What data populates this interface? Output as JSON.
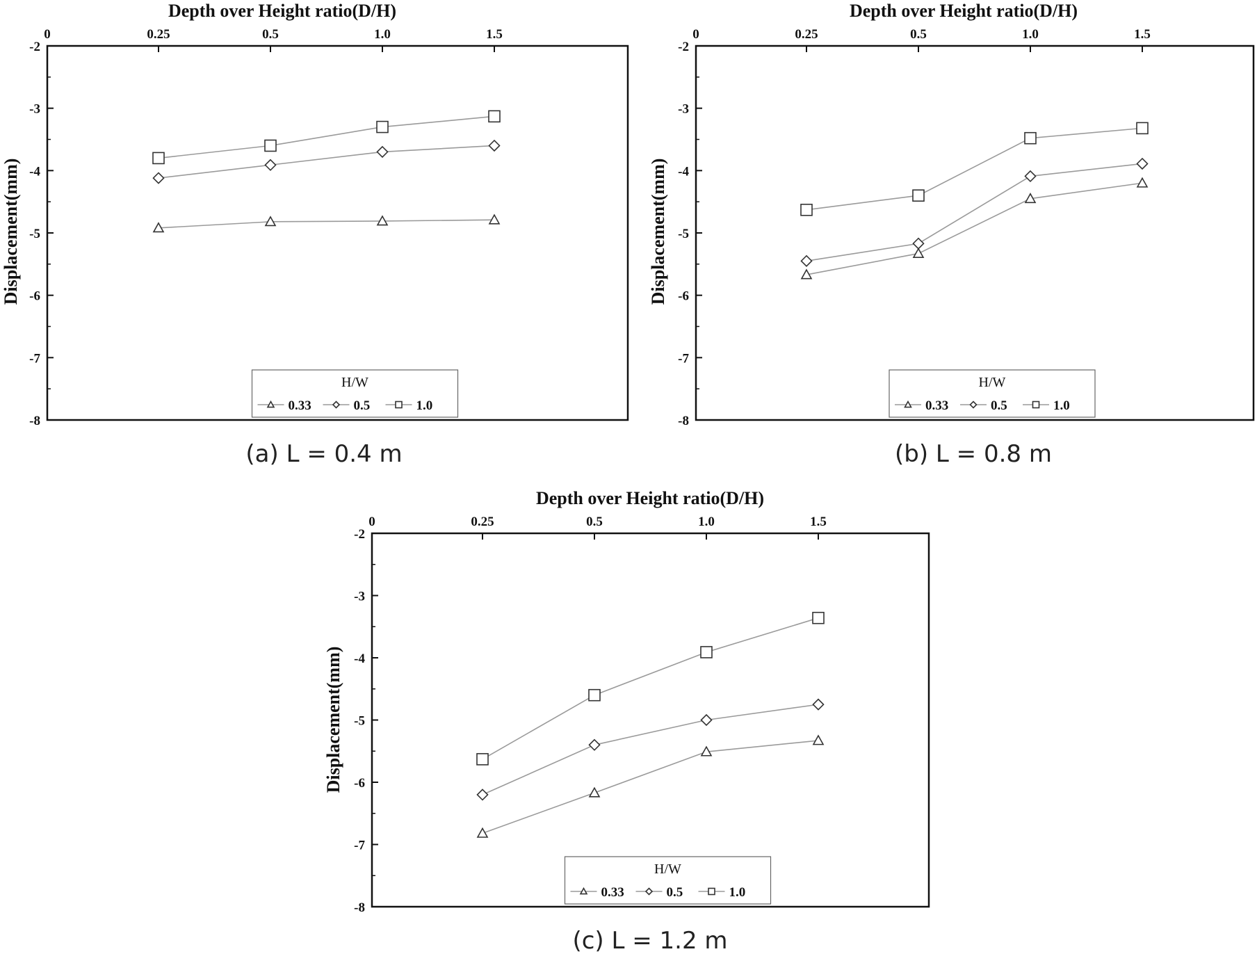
{
  "chart_data": [
    {
      "type": "line",
      "caption": "(a) L = 0.4 m",
      "xlabel": "Depth over Height ratio(D/H)",
      "ylabel": "Displacement(mm)",
      "x_tick_labels": [
        "0",
        "0.25",
        "0.5",
        "1.0",
        "1.5"
      ],
      "y_tick_labels": [
        "-2",
        "-3",
        "-4",
        "-5",
        "-6",
        "-7",
        "-8"
      ],
      "y_ticks": [
        -2,
        -3,
        -4,
        -5,
        -6,
        -7,
        -8
      ],
      "ylim": [
        -8,
        -2
      ],
      "x_axis_position": "top",
      "legend": {
        "title": "H/W",
        "position": "bottom-center"
      },
      "categories": [
        "0.25",
        "0.5",
        "1.0",
        "1.5"
      ],
      "series": [
        {
          "name": "0.33",
          "marker": "triangle",
          "values": [
            -4.92,
            -4.82,
            -4.81,
            -4.79
          ]
        },
        {
          "name": "0.5",
          "marker": "diamond",
          "values": [
            -4.12,
            -3.91,
            -3.7,
            -3.6
          ]
        },
        {
          "name": "1.0",
          "marker": "square",
          "values": [
            -3.8,
            -3.6,
            -3.3,
            -3.13
          ]
        }
      ]
    },
    {
      "type": "line",
      "caption": "(b) L = 0.8 m",
      "xlabel": "Depth over Height ratio(D/H)",
      "ylabel": "Displacement(mm)",
      "x_tick_labels": [
        "0",
        "0.25",
        "0.5",
        "1.0",
        "1.5"
      ],
      "y_tick_labels": [
        "-2",
        "-3",
        "-4",
        "-5",
        "-6",
        "-7",
        "-8"
      ],
      "y_ticks": [
        -2,
        -3,
        -4,
        -5,
        -6,
        -7,
        -8
      ],
      "ylim": [
        -8,
        -2
      ],
      "x_axis_position": "top",
      "legend": {
        "title": "H/W",
        "position": "bottom-center"
      },
      "categories": [
        "0.25",
        "0.5",
        "1.0",
        "1.5"
      ],
      "series": [
        {
          "name": "0.33",
          "marker": "triangle",
          "values": [
            -5.67,
            -5.33,
            -4.45,
            -4.2
          ]
        },
        {
          "name": "0.5",
          "marker": "diamond",
          "values": [
            -5.45,
            -5.17,
            -4.09,
            -3.89
          ]
        },
        {
          "name": "1.0",
          "marker": "square",
          "values": [
            -4.63,
            -4.4,
            -3.48,
            -3.32
          ]
        }
      ]
    },
    {
      "type": "line",
      "caption": "(c) L = 1.2 m",
      "xlabel": "Depth over Height ratio(D/H)",
      "ylabel": "Displacement(mm)",
      "x_tick_labels": [
        "0",
        "0.25",
        "0.5",
        "1.0",
        "1.5"
      ],
      "y_tick_labels": [
        "-2",
        "-3",
        "-4",
        "-5",
        "-6",
        "-7",
        "-8"
      ],
      "y_ticks": [
        -2,
        -3,
        -4,
        -5,
        -6,
        -7,
        -8
      ],
      "ylim": [
        -8,
        -2
      ],
      "x_axis_position": "top",
      "legend": {
        "title": "H/W",
        "position": "bottom-center"
      },
      "categories": [
        "0.25",
        "0.5",
        "1.0",
        "1.5"
      ],
      "series": [
        {
          "name": "0.33",
          "marker": "triangle",
          "values": [
            -6.82,
            -6.17,
            -5.51,
            -5.33
          ]
        },
        {
          "name": "0.5",
          "marker": "diamond",
          "values": [
            -6.2,
            -5.4,
            -5.0,
            -4.75
          ]
        },
        {
          "name": "1.0",
          "marker": "square",
          "values": [
            -5.63,
            -4.6,
            -3.91,
            -3.36
          ]
        }
      ]
    }
  ],
  "colors": {
    "series_line": "#9a9a9a",
    "marker_stroke": "#333333",
    "axis": "#111111"
  }
}
